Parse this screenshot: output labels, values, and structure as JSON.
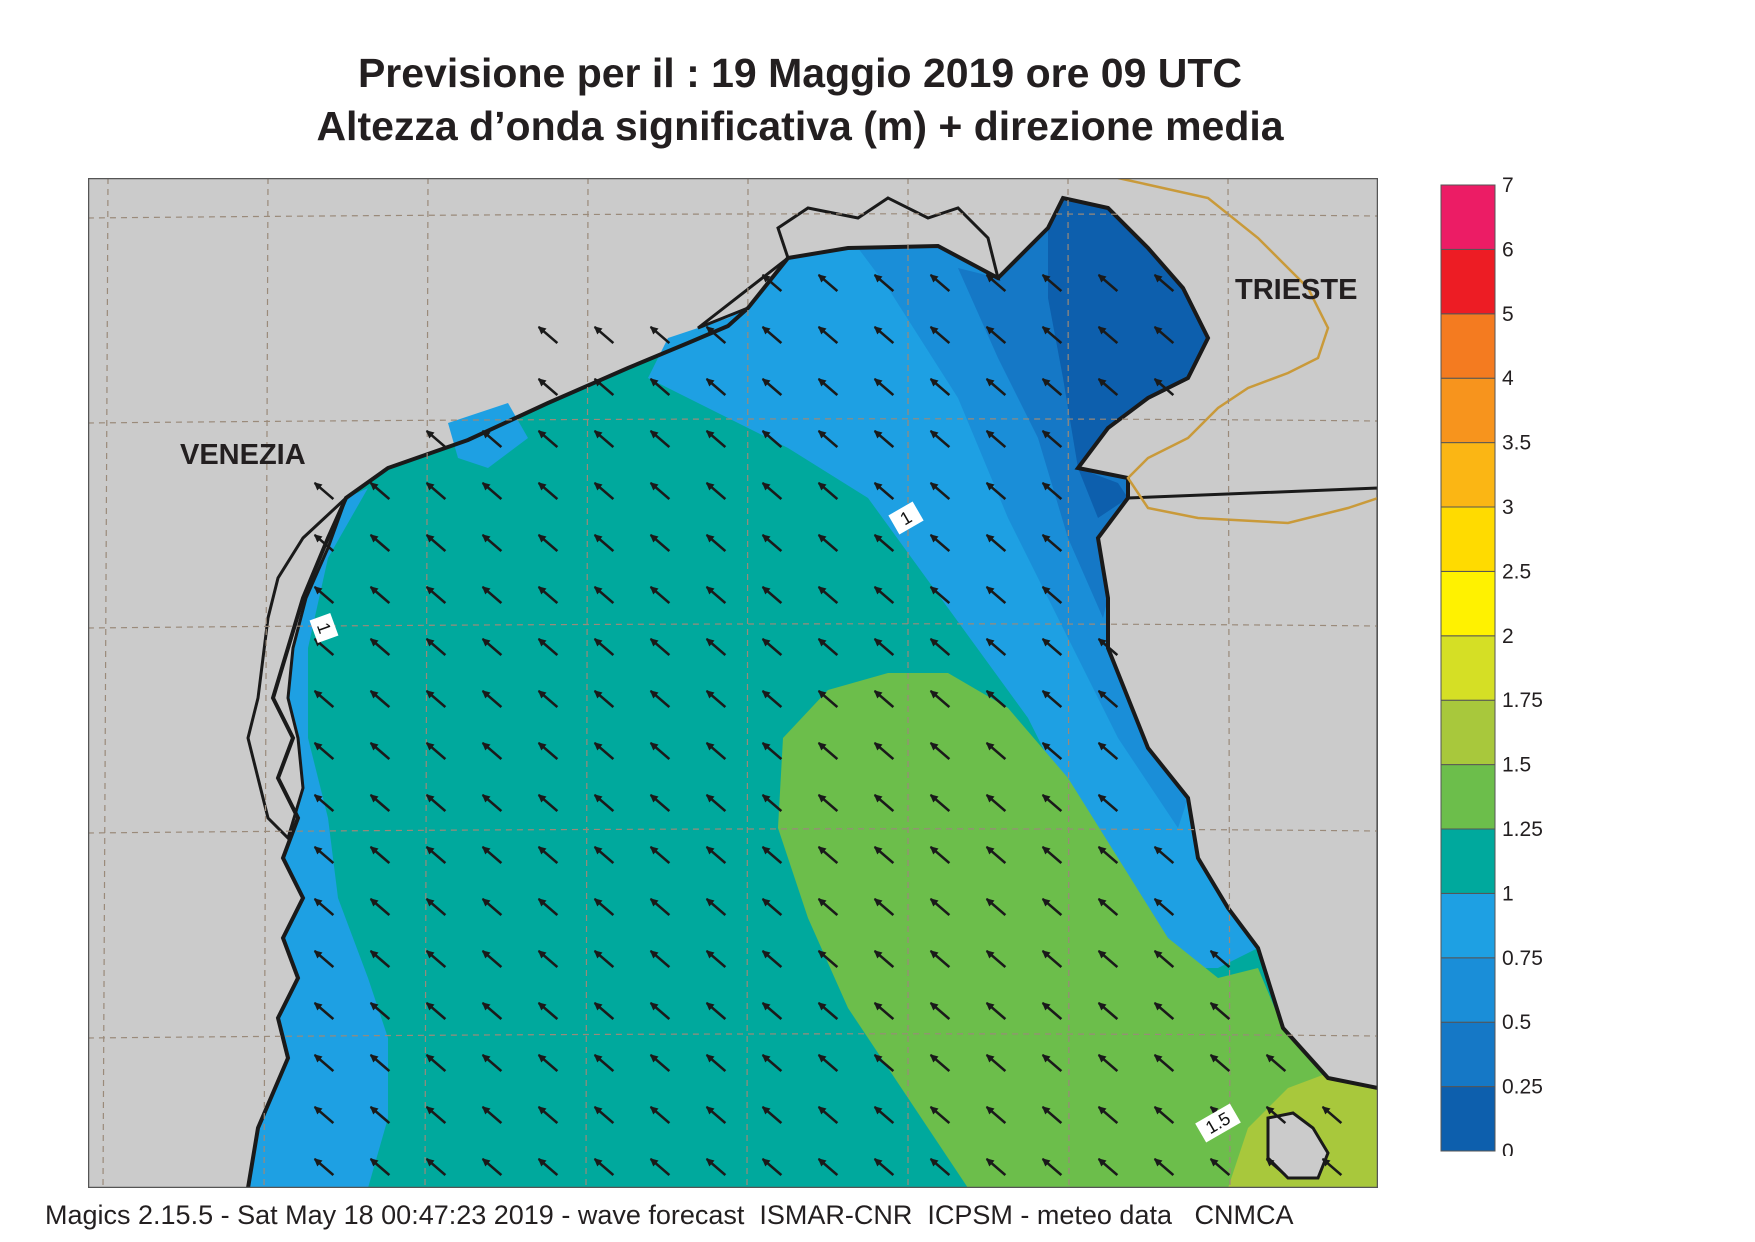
{
  "title": {
    "line1": "Previsione per il  :  19   Maggio  2019   ore 09 UTC",
    "line2": "Altezza d’onda significativa (m) + direzione media"
  },
  "map": {
    "cities": [
      "VENEZIA",
      "TRIESTE"
    ],
    "contour_labels": [
      "1",
      "1",
      "1.5"
    ],
    "arrow_direction": "north-west",
    "colors": {
      "land": "#cbcbcb",
      "coast": "#1a1a1a",
      "border": "#c99a3a",
      "grid": "#9a8a7a"
    }
  },
  "legend": {
    "levels": [
      "7",
      "6",
      "5",
      "4",
      "3.5",
      "3",
      "2.5",
      "2",
      "1.75",
      "1.5",
      "1.25",
      "1",
      "0.75",
      "0.5",
      "0.25",
      "0"
    ],
    "colors": [
      "#0d5fad",
      "#1578c6",
      "#1a8ed8",
      "#1ea0e3",
      "#00a99d",
      "#6cbe4b",
      "#a8c83c",
      "#d5df25",
      "#fff200",
      "#ffdb00",
      "#fbb614",
      "#f7941d",
      "#f47b20",
      "#ed1c24",
      "#ec1c65"
    ]
  },
  "footer": "Magics 2.15.5 - Sat May 18 00:47:23 2019 - wave forecast  ISMAR-CNR  ICPSM - meteo data   CNMCA"
}
